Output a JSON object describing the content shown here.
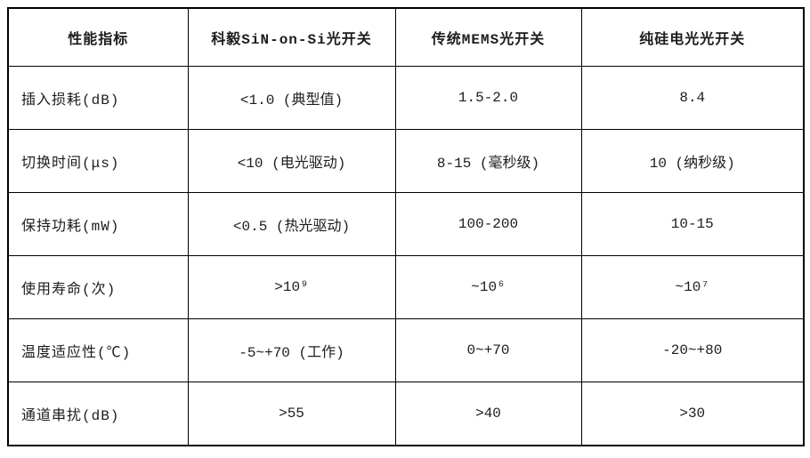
{
  "table": {
    "headers": [
      "性能指标",
      "科毅SiN-on-Si光开关",
      "传统MEMS光开关",
      "纯硅电光光开关"
    ],
    "rows": [
      [
        "插入损耗(dB)",
        "<1.0 (典型值)",
        "1.5-2.0",
        "8.4"
      ],
      [
        "切换时间(μs)",
        "<10 (电光驱动)",
        "8-15 (毫秒级)",
        "10 (纳秒级)"
      ],
      [
        "保持功耗(mW)",
        "<0.5 (热光驱动)",
        "100-200",
        "10-15"
      ],
      [
        "使用寿命(次)",
        ">10⁹",
        "~10⁶",
        "~10⁷"
      ],
      [
        "温度适应性(℃)",
        "-5~+70 (工作)",
        "0~+70",
        "-20~+80"
      ],
      [
        "通道串扰(dB)",
        ">55",
        ">40",
        ">30"
      ]
    ],
    "colors": {
      "border": "#000000",
      "text": "#1c1c1c",
      "background": "#ffffff"
    }
  }
}
